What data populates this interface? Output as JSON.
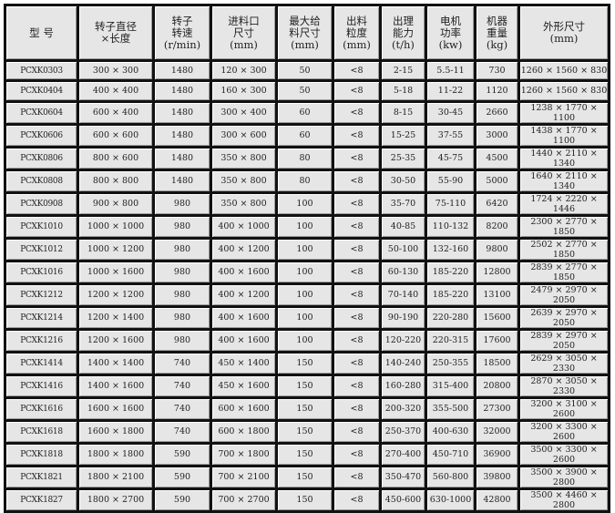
{
  "headers": [
    [
      "型 号"
    ],
    [
      "转子直径",
      "×长度"
    ],
    [
      "转子",
      "转速",
      "(r/min)"
    ],
    [
      "进料口",
      "尺寸",
      "(mm)"
    ],
    [
      "最大给",
      "料尺寸",
      "(mm)"
    ],
    [
      "出料",
      "粒度",
      "(mm)"
    ],
    [
      "出理",
      "能力",
      "(t/h)"
    ],
    [
      "电机",
      "功率",
      "(kw)"
    ],
    [
      "机器",
      "重量",
      "(kg)"
    ],
    [
      "外形尺寸",
      "(mm)"
    ]
  ],
  "rows": [
    [
      "PCXK0303",
      "300 × 300",
      "1480",
      "120 × 300",
      "50",
      "<8",
      "2-15",
      "5.5-11",
      "730",
      "1260 × 1560 × 830"
    ],
    [
      "PCXK0404",
      "400 × 400",
      "1480",
      "160 × 300",
      "50",
      "<8",
      "5-18",
      "11-22",
      "1120",
      "1260 × 1560 × 830"
    ],
    [
      "PCXK0604",
      "600 × 400",
      "1480",
      "300 × 400",
      "60",
      "<8",
      "8-15",
      "30-45",
      "2660",
      "1238 × 1770 × 1100"
    ],
    [
      "PCXK0606",
      "600 × 600",
      "1480",
      "300 × 600",
      "60",
      "<8",
      "15-25",
      "37-55",
      "3000",
      "1438 × 1770 × 1100"
    ],
    [
      "PCXK0806",
      "800 × 600",
      "1480",
      "350 × 800",
      "80",
      "<8",
      "25-35",
      "45-75",
      "4500",
      "1440 × 2110 × 1340"
    ],
    [
      "PCXK0808",
      "800 × 800",
      "1480",
      "350 × 800",
      "80",
      "<8",
      "30-50",
      "55-90",
      "5000",
      "1640 × 2110 × 1340"
    ],
    [
      "PCXK0908",
      "900 × 800",
      "980",
      "350 × 800",
      "100",
      "<8",
      "35-70",
      "75-110",
      "6420",
      "1724 × 2220 × 1446"
    ],
    [
      "PCXK1010",
      "1000 × 1000",
      "980",
      "400 × 1000",
      "100",
      "<8",
      "40-85",
      "110-132",
      "8200",
      "2300 × 2770 × 1850"
    ],
    [
      "PCXK1012",
      "1000 × 1200",
      "980",
      "400 × 1200",
      "100",
      "<8",
      "50-100",
      "132-160",
      "9800",
      "2502 × 2770 × 1850"
    ],
    [
      "PCXK1016",
      "1000 × 1600",
      "980",
      "400 × 1600",
      "100",
      "<8",
      "60-130",
      "185-220",
      "12800",
      "2839 × 2770 × 1850"
    ],
    [
      "PCXK1212",
      "1200 × 1200",
      "980",
      "400 × 1200",
      "100",
      "<8",
      "70-140",
      "185-220",
      "13100",
      "2479 × 2970 × 2050"
    ],
    [
      "PCXK1214",
      "1200 × 1400",
      "980",
      "400 × 1600",
      "100",
      "<8",
      "90-190",
      "220-280",
      "15600",
      "2639 × 2970 × 2050"
    ],
    [
      "PCXK1216",
      "1200 × 1600",
      "980",
      "400 × 1600",
      "100",
      "<8",
      "120-220",
      "220-315",
      "17600",
      "2839 × 2970 × 2050"
    ],
    [
      "PCXK1414",
      "1400 × 1400",
      "740",
      "450 × 1400",
      "150",
      "<8",
      "140-240",
      "250-355",
      "18500",
      "2629 × 3050 × 2330"
    ],
    [
      "PCXK1416",
      "1400 × 1600",
      "740",
      "450 × 1600",
      "150",
      "<8",
      "160-280",
      "315-400",
      "20800",
      "2870 × 3050 × 2330"
    ],
    [
      "PCXK1616",
      "1600 × 1600",
      "740",
      "600 × 1600",
      "150",
      "<8",
      "200-320",
      "355-500",
      "27300",
      "3200 × 3100 × 2600"
    ],
    [
      "PCXK1618",
      "1600 × 1800",
      "740",
      "600 × 1800",
      "150",
      "<8",
      "250-370",
      "400-630",
      "32000",
      "3200 × 3300 × 2600"
    ],
    [
      "PCXK1818",
      "1800 × 1800",
      "590",
      "700 × 1800",
      "150",
      "<8",
      "270-400",
      "450-710",
      "36900",
      "3500 × 3300 × 2600"
    ],
    [
      "PCXK1821",
      "1800 × 2100",
      "590",
      "700 × 2100",
      "150",
      "<8",
      "350-470",
      "560-800",
      "39800",
      "3500 × 3900 × 2800"
    ],
    [
      "PCXK1827",
      "1800 × 2700",
      "590",
      "700 × 2700",
      "150",
      "<8",
      "450-600",
      "630-1000",
      "42800",
      "3500 × 4460 × 2800"
    ]
  ]
}
